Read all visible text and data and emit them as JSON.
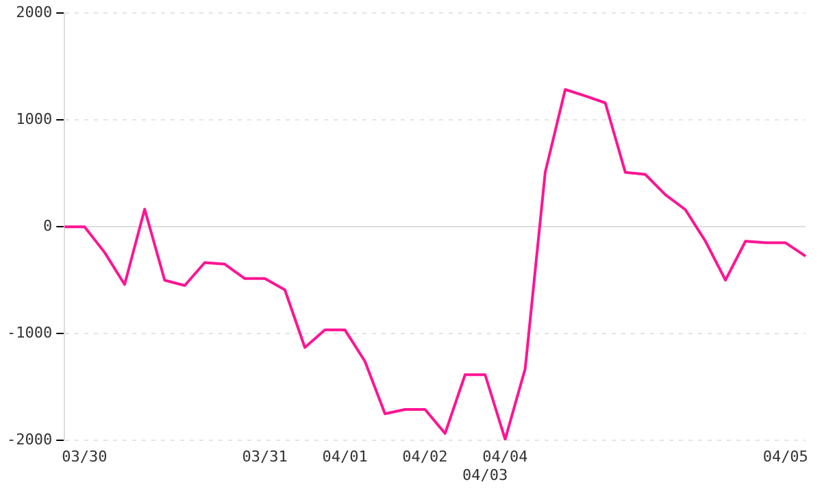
{
  "chart_data": {
    "type": "line",
    "categories": [
      null,
      "03/30",
      null,
      null,
      null,
      null,
      null,
      null,
      null,
      null,
      "03/31",
      null,
      null,
      null,
      "04/01",
      null,
      null,
      null,
      "04/02",
      null,
      null,
      "04/03",
      "04/04",
      null,
      null,
      null,
      null,
      null,
      null,
      null,
      null,
      null,
      null,
      null,
      null,
      null,
      "04/05",
      null
    ],
    "series": [
      {
        "color": "#ff1493",
        "values": [
          0,
          0,
          -240,
          -540,
          165,
          -500,
          -550,
          -335,
          -350,
          -485,
          -485,
          -590,
          -1130,
          -965,
          -965,
          -1260,
          -1750,
          -1710,
          -1710,
          -1935,
          -1385,
          -1385,
          -1990,
          -1330,
          510,
          1285,
          1225,
          1160,
          510,
          490,
          300,
          160,
          -135,
          -500,
          -135,
          -150,
          -150,
          -275
        ]
      }
    ],
    "ylim": [
      -2000,
      2000
    ],
    "yticks": [
      -2000,
      -1000,
      0,
      1000,
      2000
    ],
    "grid": "y",
    "legend": false,
    "marker": "none",
    "line_style": "solid"
  }
}
